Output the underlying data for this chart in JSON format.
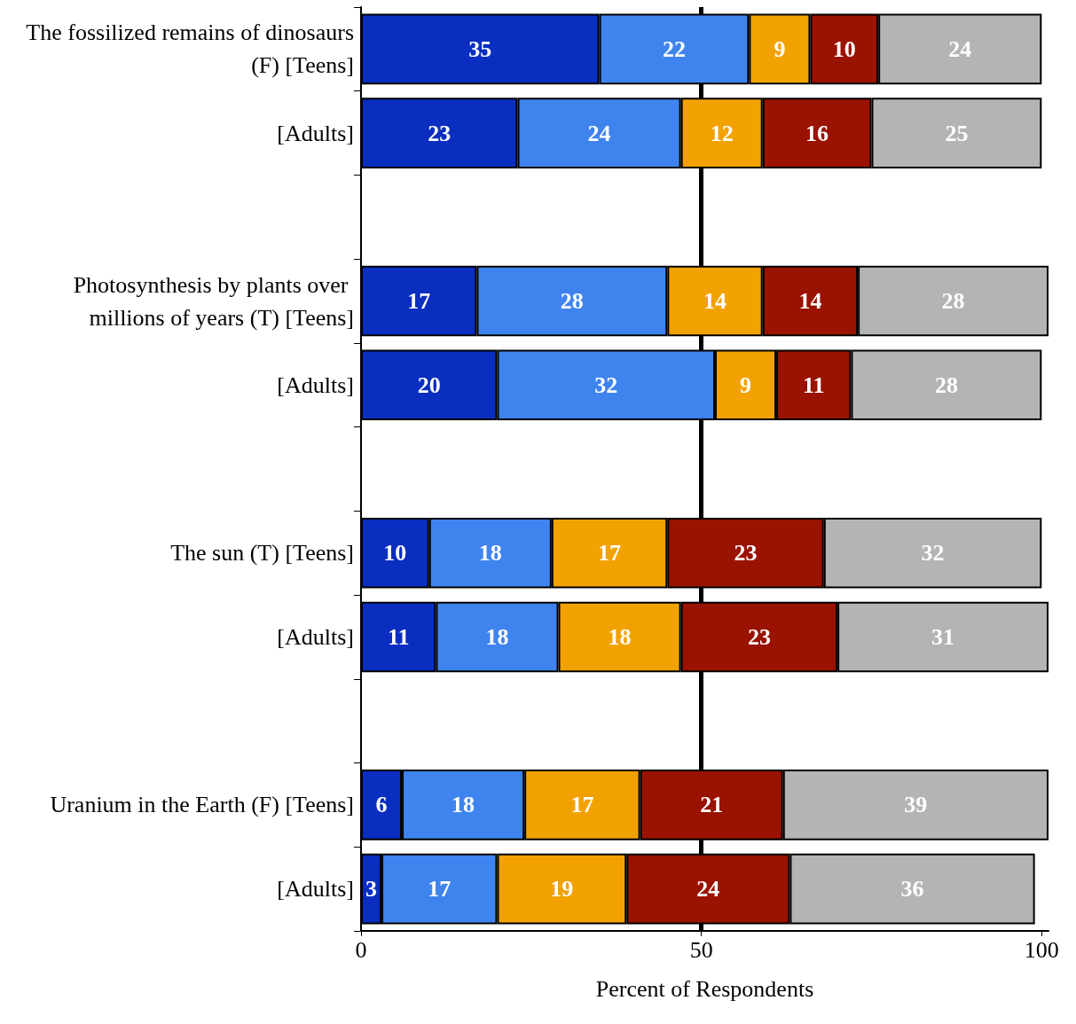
{
  "chart_data": {
    "type": "bar",
    "orientation": "horizontal",
    "stacked": true,
    "data_labels": true,
    "xlabel": "Percent of Respondents",
    "xlim": [
      0,
      101
    ],
    "xticks": [
      0,
      50,
      100
    ],
    "categories": [
      "The fossilized remains of dinosaurs (F) [Teens]",
      "[Adults]",
      null,
      "Photosynthesis by plants over millions of years (T) [Teens]",
      "[Adults]",
      null,
      "The sun (T) [Teens]",
      "[Adults]",
      null,
      "Uranium in the Earth (F) [Teens]",
      "[Adults]"
    ],
    "series": [
      {
        "color": "#0a2ec0",
        "values": [
          35,
          23,
          null,
          17,
          20,
          null,
          10,
          11,
          null,
          6,
          3
        ]
      },
      {
        "color": "#3f84ee",
        "values": [
          22,
          24,
          null,
          28,
          32,
          null,
          18,
          18,
          null,
          18,
          17
        ]
      },
      {
        "color": "#f2a200",
        "values": [
          9,
          12,
          null,
          14,
          9,
          null,
          17,
          18,
          null,
          17,
          19
        ]
      },
      {
        "color": "#9a1200",
        "values": [
          10,
          16,
          null,
          14,
          11,
          null,
          23,
          23,
          null,
          21,
          24
        ]
      },
      {
        "color": "#b4b4b4",
        "values": [
          24,
          25,
          null,
          28,
          28,
          null,
          32,
          31,
          null,
          39,
          36
        ]
      }
    ],
    "ref_lines": [
      {
        "axis": "x",
        "value": 50,
        "color": "#000000"
      }
    ]
  }
}
